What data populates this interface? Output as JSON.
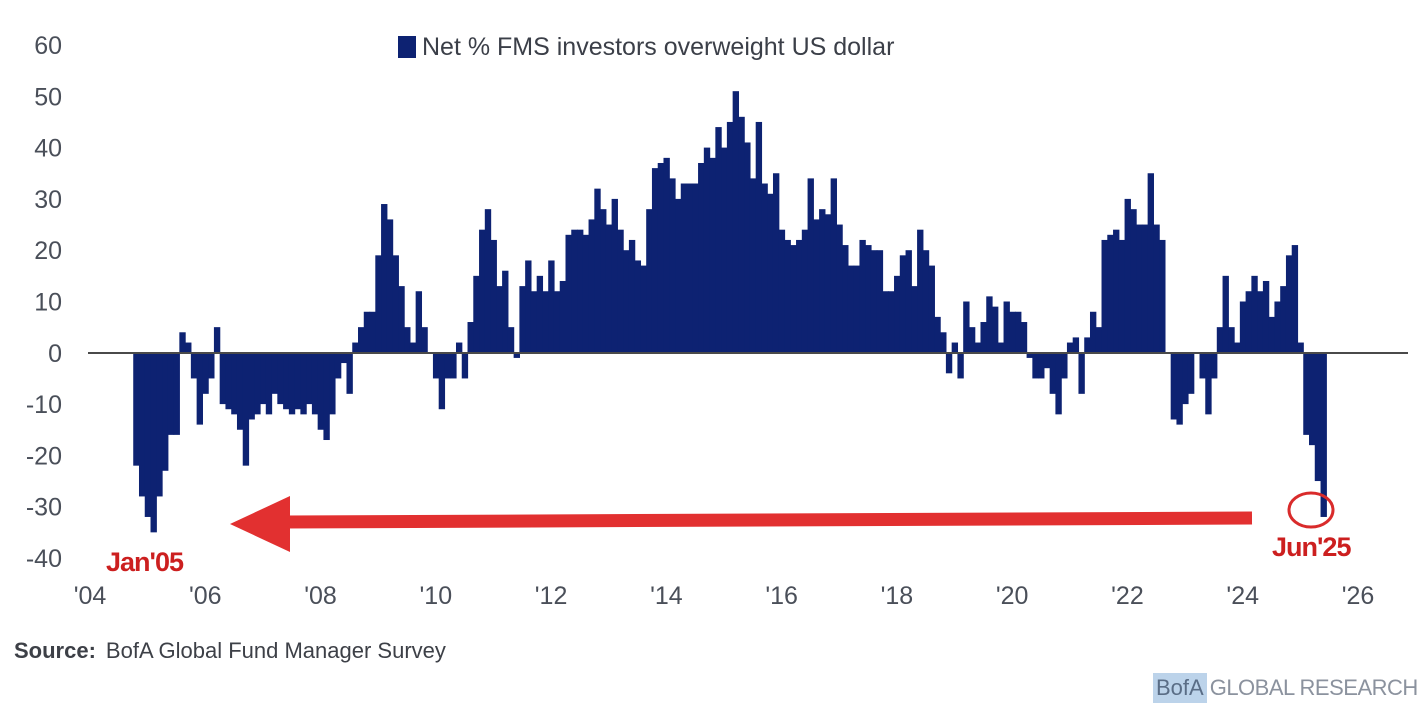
{
  "chart_data": {
    "type": "bar",
    "legend": {
      "label": "Net % FMS investors overweight US dollar",
      "color": "#0d2272",
      "position": "top-center"
    },
    "x_ticks": [
      "'04",
      "'06",
      "'08",
      "'10",
      "'12",
      "'14",
      "'16",
      "'18",
      "'20",
      "'22",
      "'24",
      "'26"
    ],
    "y_ticks": [
      "60",
      "50",
      "40",
      "30",
      "20",
      "10",
      "0",
      "-10",
      "-20",
      "-30",
      "-40"
    ],
    "xlim": [
      2004,
      2026
    ],
    "ylim": [
      -40,
      60
    ],
    "grid": false,
    "bar_color": "#0d2272",
    "series": [
      {
        "values": [
          [
            2004.8,
            -22
          ],
          [
            2004.9,
            -28
          ],
          [
            2005.0,
            -32
          ],
          [
            2005.1,
            -35
          ],
          [
            2005.2,
            -28
          ],
          [
            2005.3,
            -23
          ],
          [
            2005.4,
            -16
          ],
          [
            2005.5,
            -16
          ],
          [
            2005.6,
            4
          ],
          [
            2005.7,
            2
          ],
          [
            2005.8,
            -5
          ],
          [
            2005.9,
            -14
          ],
          [
            2006.0,
            -8
          ],
          [
            2006.1,
            -5
          ],
          [
            2006.2,
            5
          ],
          [
            2006.3,
            -10
          ],
          [
            2006.4,
            -11
          ],
          [
            2006.5,
            -12
          ],
          [
            2006.6,
            -15
          ],
          [
            2006.7,
            -22
          ],
          [
            2006.8,
            -13
          ],
          [
            2006.9,
            -12
          ],
          [
            2007.0,
            -10
          ],
          [
            2007.1,
            -12
          ],
          [
            2007.2,
            -8
          ],
          [
            2007.3,
            -10
          ],
          [
            2007.4,
            -11
          ],
          [
            2007.5,
            -12
          ],
          [
            2007.6,
            -11
          ],
          [
            2007.7,
            -12
          ],
          [
            2007.8,
            -10
          ],
          [
            2007.9,
            -12
          ],
          [
            2008.0,
            -15
          ],
          [
            2008.1,
            -17
          ],
          [
            2008.2,
            -12
          ],
          [
            2008.3,
            -5
          ],
          [
            2008.4,
            -2
          ],
          [
            2008.5,
            -8
          ],
          [
            2008.6,
            2
          ],
          [
            2008.7,
            5
          ],
          [
            2008.8,
            8
          ],
          [
            2008.9,
            8
          ],
          [
            2009.0,
            19
          ],
          [
            2009.1,
            29
          ],
          [
            2009.2,
            26
          ],
          [
            2009.3,
            19
          ],
          [
            2009.4,
            13
          ],
          [
            2009.5,
            5
          ],
          [
            2009.6,
            2
          ],
          [
            2009.7,
            12
          ],
          [
            2009.8,
            5
          ],
          [
            2009.9,
            0
          ],
          [
            2010.0,
            -5
          ],
          [
            2010.1,
            -11
          ],
          [
            2010.2,
            -5
          ],
          [
            2010.3,
            -5
          ],
          [
            2010.4,
            2
          ],
          [
            2010.5,
            -5
          ],
          [
            2010.6,
            6
          ],
          [
            2010.7,
            15
          ],
          [
            2010.8,
            24
          ],
          [
            2010.9,
            28
          ],
          [
            2011.0,
            22
          ],
          [
            2011.1,
            13
          ],
          [
            2011.2,
            16
          ],
          [
            2011.3,
            5
          ],
          [
            2011.4,
            -1
          ],
          [
            2011.5,
            13
          ],
          [
            2011.6,
            18
          ],
          [
            2011.7,
            12
          ],
          [
            2011.8,
            15
          ],
          [
            2011.9,
            12
          ],
          [
            2012.0,
            18
          ],
          [
            2012.1,
            12
          ],
          [
            2012.2,
            14
          ],
          [
            2012.3,
            23
          ],
          [
            2012.4,
            24
          ],
          [
            2012.5,
            24
          ],
          [
            2012.6,
            23
          ],
          [
            2012.7,
            26
          ],
          [
            2012.8,
            32
          ],
          [
            2012.9,
            28
          ],
          [
            2013.0,
            25
          ],
          [
            2013.1,
            30
          ],
          [
            2013.2,
            24
          ],
          [
            2013.3,
            20
          ],
          [
            2013.4,
            22
          ],
          [
            2013.5,
            18
          ],
          [
            2013.6,
            17
          ],
          [
            2013.7,
            28
          ],
          [
            2013.8,
            36
          ],
          [
            2013.9,
            37
          ],
          [
            2014.0,
            38
          ],
          [
            2014.1,
            34
          ],
          [
            2014.2,
            30
          ],
          [
            2014.3,
            33
          ],
          [
            2014.4,
            33
          ],
          [
            2014.5,
            33
          ],
          [
            2014.6,
            37
          ],
          [
            2014.7,
            40
          ],
          [
            2014.8,
            38
          ],
          [
            2014.9,
            44
          ],
          [
            2015.0,
            40
          ],
          [
            2015.1,
            45
          ],
          [
            2015.2,
            51
          ],
          [
            2015.3,
            46
          ],
          [
            2015.4,
            41
          ],
          [
            2015.5,
            34
          ],
          [
            2015.6,
            45
          ],
          [
            2015.7,
            33
          ],
          [
            2015.8,
            31
          ],
          [
            2015.9,
            35
          ],
          [
            2016.0,
            24
          ],
          [
            2016.1,
            22
          ],
          [
            2016.2,
            21
          ],
          [
            2016.3,
            22
          ],
          [
            2016.4,
            24
          ],
          [
            2016.5,
            34
          ],
          [
            2016.6,
            26
          ],
          [
            2016.7,
            28
          ],
          [
            2016.8,
            27
          ],
          [
            2016.9,
            34
          ],
          [
            2017.0,
            25
          ],
          [
            2017.1,
            21
          ],
          [
            2017.2,
            17
          ],
          [
            2017.3,
            17
          ],
          [
            2017.4,
            22
          ],
          [
            2017.5,
            21
          ],
          [
            2017.6,
            20
          ],
          [
            2017.7,
            20
          ],
          [
            2017.8,
            12
          ],
          [
            2017.9,
            12
          ],
          [
            2018.0,
            15
          ],
          [
            2018.1,
            19
          ],
          [
            2018.2,
            20
          ],
          [
            2018.3,
            13
          ],
          [
            2018.4,
            24
          ],
          [
            2018.5,
            20
          ],
          [
            2018.6,
            17
          ],
          [
            2018.7,
            7
          ],
          [
            2018.8,
            4
          ],
          [
            2018.9,
            -4
          ],
          [
            2019.0,
            2
          ],
          [
            2019.1,
            -5
          ],
          [
            2019.2,
            10
          ],
          [
            2019.3,
            5
          ],
          [
            2019.4,
            2
          ],
          [
            2019.5,
            6
          ],
          [
            2019.6,
            11
          ],
          [
            2019.7,
            9
          ],
          [
            2019.8,
            2
          ],
          [
            2019.9,
            10
          ],
          [
            2020.0,
            8
          ],
          [
            2020.1,
            8
          ],
          [
            2020.2,
            6
          ],
          [
            2020.3,
            -1
          ],
          [
            2020.4,
            -5
          ],
          [
            2020.5,
            -5
          ],
          [
            2020.6,
            -3
          ],
          [
            2020.7,
            -8
          ],
          [
            2020.8,
            -12
          ],
          [
            2020.9,
            -5
          ],
          [
            2021.0,
            2
          ],
          [
            2021.1,
            3
          ],
          [
            2021.2,
            -8
          ],
          [
            2021.3,
            3
          ],
          [
            2021.4,
            8
          ],
          [
            2021.5,
            5
          ],
          [
            2021.6,
            22
          ],
          [
            2021.7,
            23
          ],
          [
            2021.8,
            24
          ],
          [
            2021.9,
            22
          ],
          [
            2022.0,
            30
          ],
          [
            2022.1,
            28
          ],
          [
            2022.2,
            25
          ],
          [
            2022.3,
            25
          ],
          [
            2022.4,
            35
          ],
          [
            2022.5,
            25
          ],
          [
            2022.6,
            22
          ],
          [
            2022.7,
            0
          ],
          [
            2022.8,
            -13
          ],
          [
            2022.9,
            -14
          ],
          [
            2023.0,
            -10
          ],
          [
            2023.1,
            -8
          ],
          [
            2023.2,
            0
          ],
          [
            2023.3,
            -5
          ],
          [
            2023.4,
            -12
          ],
          [
            2023.5,
            -5
          ],
          [
            2023.6,
            5
          ],
          [
            2023.7,
            15
          ],
          [
            2023.8,
            5
          ],
          [
            2023.9,
            2
          ],
          [
            2024.0,
            10
          ],
          [
            2024.1,
            12
          ],
          [
            2024.2,
            15
          ],
          [
            2024.3,
            12
          ],
          [
            2024.4,
            14
          ],
          [
            2024.5,
            7
          ],
          [
            2024.6,
            10
          ],
          [
            2024.7,
            13
          ],
          [
            2024.8,
            19
          ],
          [
            2024.9,
            21
          ],
          [
            2025.0,
            2
          ],
          [
            2025.1,
            -16
          ],
          [
            2025.2,
            -18
          ],
          [
            2025.3,
            -25
          ],
          [
            2025.4,
            -32
          ]
        ]
      }
    ],
    "annotations": [
      {
        "label": "Jan'05",
        "color": "#cc1f1f"
      },
      {
        "label": "Jun'25",
        "color": "#cc1f1f"
      }
    ]
  },
  "footer": {
    "source_label": "Source:",
    "source_text": "BofA Global Fund Manager Survey",
    "brand_box": "BofA",
    "brand_rest": "GLOBAL RESEARCH"
  }
}
